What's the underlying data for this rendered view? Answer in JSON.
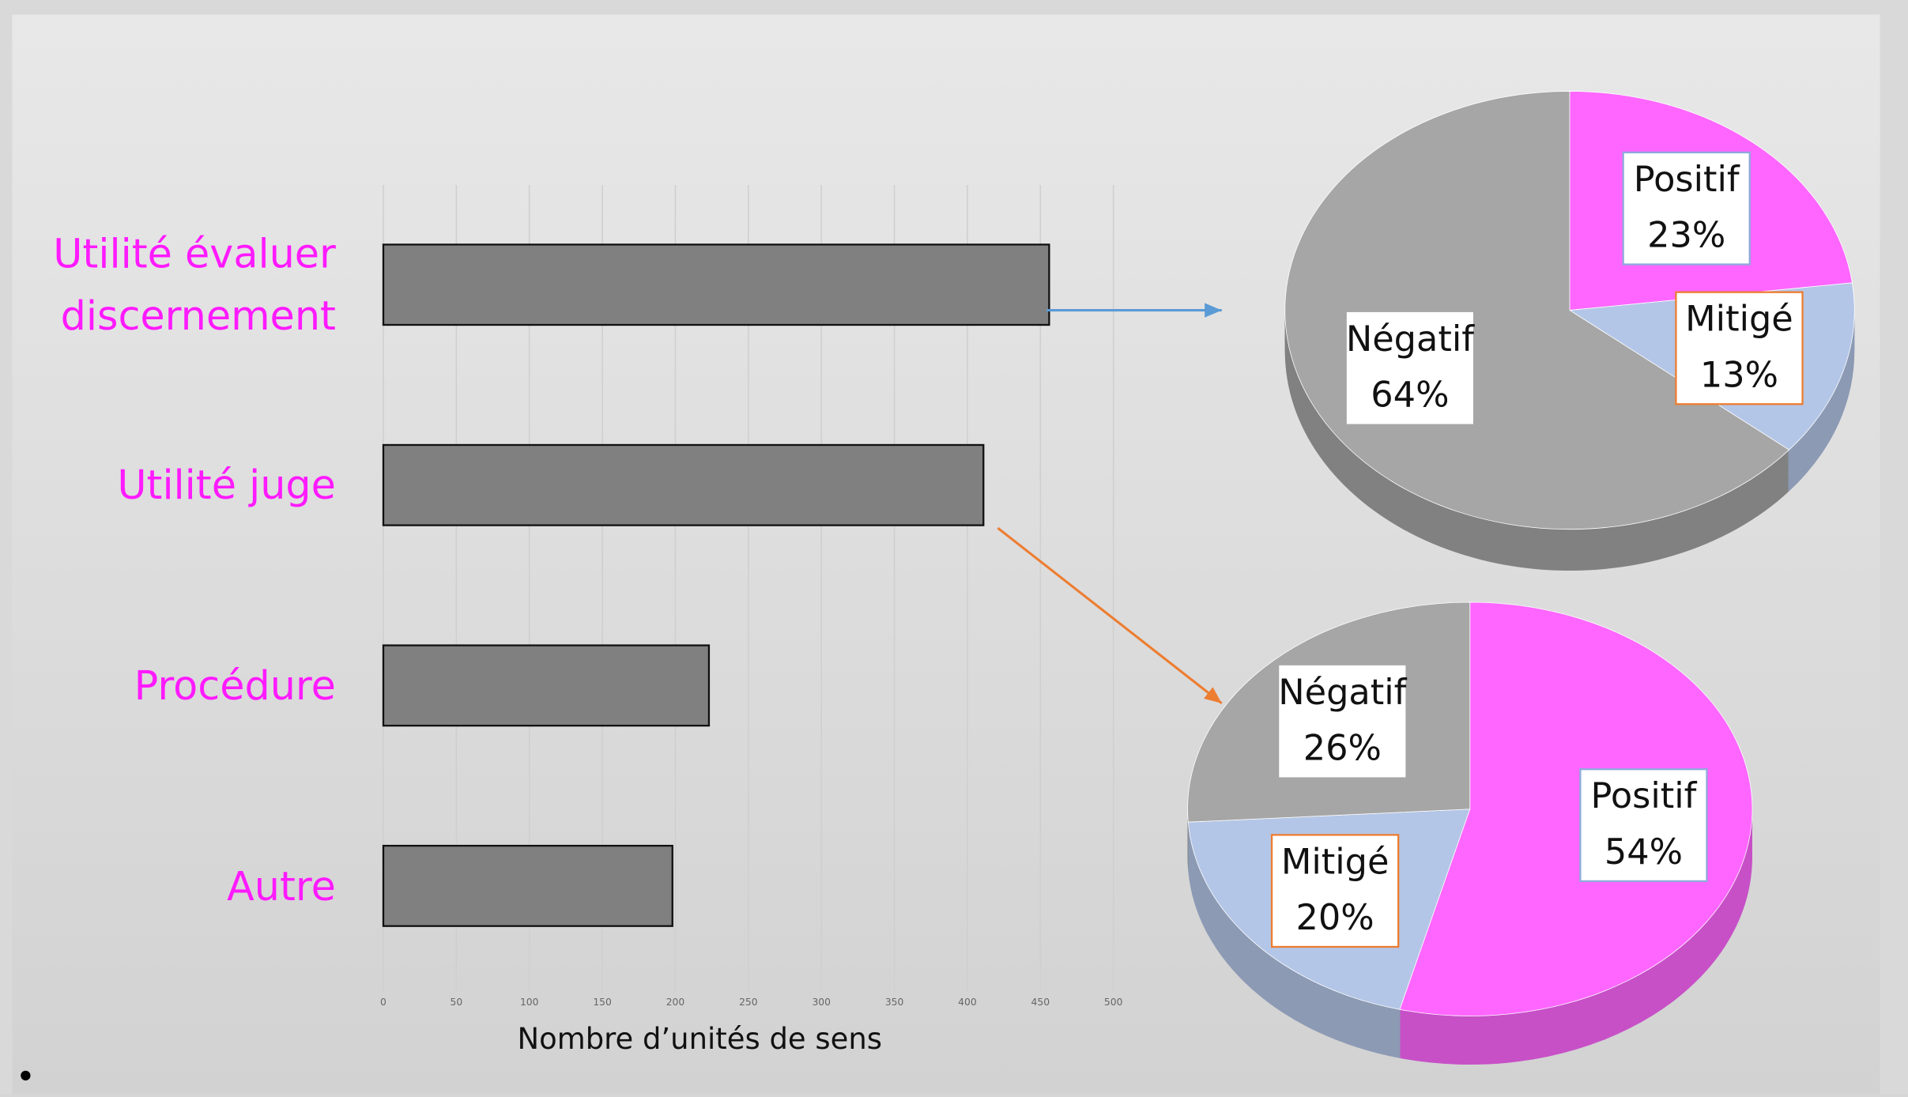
{
  "chart_data": [
    {
      "type": "barh",
      "categories": [
        "Utilité évaluer discernement",
        "Utilité juge",
        "Procédure",
        "Autre"
      ],
      "values": [
        456,
        411,
        223,
        198
      ],
      "color": "#808080",
      "label_color": "#ff1aff",
      "xlabel": "Nombre d’unités de sens",
      "xlim": [
        0,
        500
      ],
      "xticks": [
        0,
        50,
        100,
        150,
        200,
        250,
        300,
        350,
        400,
        450,
        500
      ],
      "grid": true
    },
    {
      "type": "pie",
      "categories": [
        "Positif",
        "Mitigé",
        "Négatif"
      ],
      "values": [
        23,
        13,
        64
      ],
      "value_labels": [
        "23%",
        "13%",
        "64%"
      ],
      "colors": [
        "#ff66ff",
        "#b4c6e7",
        "#a6a6a6"
      ]
    },
    {
      "type": "pie",
      "categories": [
        "Positif",
        "Mitigé",
        "Négatif"
      ],
      "values": [
        54,
        20,
        26
      ],
      "value_labels": [
        "54%",
        "20%",
        "26%"
      ],
      "colors": [
        "#ff66ff",
        "#b4c6e7",
        "#a6a6a6"
      ]
    }
  ]
}
